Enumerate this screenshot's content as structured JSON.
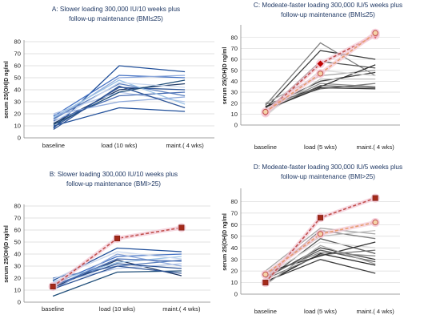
{
  "chart_data": [
    {
      "type": "line",
      "title": [
        "A: Slower loading 300,000 IU/10 weeks plus",
        "follow-up maintenance (BMI≤25)"
      ],
      "ylabel": "serum 25(OH)D ng/ml",
      "categories": [
        "baseline",
        "load (10 wks)",
        "maint.( 4 wks)"
      ],
      "ylim": [
        0,
        80
      ],
      "yticks": [
        0,
        10,
        20,
        30,
        40,
        50,
        60,
        70,
        80
      ],
      "series": [
        {
          "values": [
            8,
            60,
            55
          ],
          "color": "#1f4e99"
        },
        {
          "values": [
            10,
            25,
            22
          ],
          "color": "#1f4e99"
        },
        {
          "values": [
            18,
            52,
            50
          ],
          "color": "#4472c4"
        },
        {
          "values": [
            15,
            50,
            52
          ],
          "color": "#8ea9db"
        },
        {
          "values": [
            12,
            40,
            45
          ],
          "color": "#1f3864"
        },
        {
          "values": [
            20,
            38,
            30
          ],
          "color": "#b4c6e7"
        },
        {
          "values": [
            16,
            45,
            35
          ],
          "color": "#5b7fbd"
        },
        {
          "values": [
            9,
            42,
            40
          ],
          "color": "#2e5597"
        },
        {
          "values": [
            14,
            35,
            38
          ],
          "color": "#4a6fb5"
        },
        {
          "values": [
            17,
            48,
            28
          ],
          "color": "#9dc3e6"
        },
        {
          "values": [
            11,
            38,
            48
          ],
          "color": "#1f4e79"
        },
        {
          "values": [
            13,
            46,
            42
          ],
          "color": "#c9d7ee"
        },
        {
          "values": [
            19,
            30,
            34
          ],
          "color": "#8ea9db"
        },
        {
          "values": [
            7,
            43,
            25
          ],
          "color": "#2f5597"
        }
      ]
    },
    {
      "type": "line",
      "title": [
        "C: Modeate-faster loading 300,000 IU/5 weeks plus",
        "follow-up maintenance (BMI≤25)"
      ],
      "ylabel": "serum 25(OH)D ng/ml",
      "categories": [
        "baseline",
        "load (5 wks)",
        "maint.( 4 wks)"
      ],
      "ylim": [
        0,
        90
      ],
      "yticks": [
        0,
        10,
        20,
        30,
        40,
        50,
        60,
        70,
        80
      ],
      "series": [
        {
          "values": [
            18,
            75,
            45
          ],
          "color": "#7f7f7f"
        },
        {
          "values": [
            15,
            68,
            60
          ],
          "color": "#3f3f3f"
        },
        {
          "values": [
            12,
            58,
            52
          ],
          "color": "#595959"
        },
        {
          "values": [
            20,
            45,
            50
          ],
          "color": "#a6a6a6"
        },
        {
          "values": [
            16,
            40,
            48
          ],
          "color": "#404040"
        },
        {
          "values": [
            14,
            38,
            35
          ],
          "color": "#8c8c8c"
        },
        {
          "values": [
            17,
            35,
            55
          ],
          "color": "#262626"
        },
        {
          "values": [
            13,
            36,
            34
          ],
          "color": "#595959"
        },
        {
          "values": [
            10,
            42,
            42
          ],
          "color": "#bfbfbf"
        },
        {
          "values": [
            19,
            33,
            38
          ],
          "color": "#737373"
        },
        {
          "values": [
            8,
            50,
            45
          ],
          "color": "#d9d9d9"
        },
        {
          "values": [
            14,
            34,
            33
          ],
          "color": "#333333"
        },
        {
          "values": [
            11,
            56,
            82
          ],
          "color": "#c0504d",
          "dashed": true,
          "marker": "diamond"
        },
        {
          "values": [
            12,
            47,
            84
          ],
          "color": "#e69c6e",
          "dashed": true,
          "marker": "circle"
        }
      ]
    },
    {
      "type": "line",
      "title": [
        "B: Slower loading 300,000 IU/10 weeks plus",
        "follow-up maintenance (BMI>25)"
      ],
      "ylabel": "serum 25(OH)D ng/ml",
      "categories": [
        "baseline",
        "load (10 wks)",
        "maint.( 4 wks)"
      ],
      "ylim": [
        0,
        80
      ],
      "yticks": [
        0,
        10,
        20,
        30,
        40,
        50,
        60,
        70,
        80
      ],
      "series": [
        {
          "values": [
            18,
            45,
            42
          ],
          "color": "#1f4e99"
        },
        {
          "values": [
            15,
            38,
            40
          ],
          "color": "#4472c4"
        },
        {
          "values": [
            12,
            35,
            22
          ],
          "color": "#1f3864"
        },
        {
          "values": [
            10,
            40,
            30
          ],
          "color": "#8ea9db"
        },
        {
          "values": [
            20,
            30,
            35
          ],
          "color": "#5b7fbd"
        },
        {
          "values": [
            16,
            28,
            32
          ],
          "color": "#b4c6e7"
        },
        {
          "values": [
            14,
            32,
            28
          ],
          "color": "#2e5597"
        },
        {
          "values": [
            5,
            25,
            26
          ],
          "color": "#1f4e79"
        },
        {
          "values": [
            17,
            33,
            38
          ],
          "color": "#9dc3e6"
        },
        {
          "values": [
            13,
            36,
            34
          ],
          "color": "#4a6fb5"
        },
        {
          "values": [
            19,
            42,
            36
          ],
          "color": "#c9d7ee"
        },
        {
          "values": [
            11,
            30,
            24
          ],
          "color": "#2f5597"
        },
        {
          "values": [
            13,
            53,
            62
          ],
          "color": "#c0504d",
          "dashed": true,
          "marker": "square"
        }
      ]
    },
    {
      "type": "line",
      "title": [
        "D: Modeate-faster loading 300,000 IU/5 weeks plus",
        "follow-up maintenance (BMI>25)"
      ],
      "ylabel": "serum 25(OH)D ng/ml",
      "categories": [
        "baseline",
        "load (5 wks)",
        "maint.( 4 wks)"
      ],
      "ylim": [
        0,
        90
      ],
      "yticks": [
        0,
        10,
        20,
        30,
        40,
        50,
        60,
        70,
        80
      ],
      "series": [
        {
          "values": [
            20,
            57,
            52
          ],
          "color": "#a6a6a6"
        },
        {
          "values": [
            15,
            55,
            48
          ],
          "color": "#7f7f7f"
        },
        {
          "values": [
            18,
            50,
            55
          ],
          "color": "#bfbfbf"
        },
        {
          "values": [
            12,
            48,
            35
          ],
          "color": "#595959"
        },
        {
          "values": [
            16,
            45,
            40
          ],
          "color": "#d9d9d9"
        },
        {
          "values": [
            14,
            40,
            30
          ],
          "color": "#404040"
        },
        {
          "values": [
            17,
            36,
            33
          ],
          "color": "#8c8c8c"
        },
        {
          "values": [
            10,
            35,
            25
          ],
          "color": "#262626"
        },
        {
          "values": [
            13,
            34,
            38
          ],
          "color": "#737373"
        },
        {
          "values": [
            19,
            33,
            45
          ],
          "color": "#333333"
        },
        {
          "values": [
            11,
            30,
            18
          ],
          "color": "#3f3f3f"
        },
        {
          "values": [
            15,
            38,
            28
          ],
          "color": "#595959"
        },
        {
          "values": [
            8,
            42,
            26
          ],
          "color": "#a6a6a6"
        },
        {
          "values": [
            10,
            66,
            83
          ],
          "color": "#c0504d",
          "dashed": true,
          "marker": "square"
        },
        {
          "values": [
            17,
            52,
            62
          ],
          "color": "#e69c6e",
          "dashed": true,
          "marker": "circle"
        }
      ]
    }
  ]
}
